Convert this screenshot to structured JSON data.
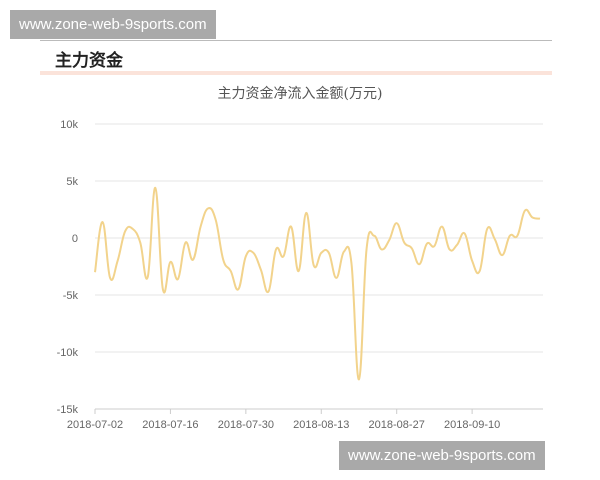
{
  "watermark_top": "www.zone-web-9sports.com",
  "watermark_bottom": "www.zone-web-9sports.com",
  "section_title": "主力资金",
  "colors": {
    "line": "#f2d38c",
    "grid": "#e6e6e6",
    "band": "#fbe3da"
  },
  "chart_data": {
    "type": "line",
    "title": "主力资金净流入金额(万元)",
    "xlabel": "",
    "ylabel": "",
    "ylim": [
      -15000,
      10000
    ],
    "yticks": [
      10000,
      5000,
      0,
      -5000,
      -10000,
      -15000
    ],
    "ytick_labels": [
      "10k",
      "5k",
      "0",
      "-5k",
      "-10k",
      "-15k"
    ],
    "xtick_labels": [
      "2018-07-02",
      "2018-07-16",
      "2018-07-30",
      "2018-08-13",
      "2018-08-27",
      "2018-09-10"
    ],
    "grid": true,
    "smooth": true,
    "x": [
      "2018-07-02",
      "2018-07-03",
      "2018-07-04",
      "2018-07-05",
      "2018-07-06",
      "2018-07-09",
      "2018-07-10",
      "2018-07-11",
      "2018-07-12",
      "2018-07-13",
      "2018-07-16",
      "2018-07-17",
      "2018-07-18",
      "2018-07-19",
      "2018-07-20",
      "2018-07-23",
      "2018-07-24",
      "2018-07-25",
      "2018-07-26",
      "2018-07-27",
      "2018-07-30",
      "2018-07-31",
      "2018-08-01",
      "2018-08-02",
      "2018-08-03",
      "2018-08-06",
      "2018-08-07",
      "2018-08-08",
      "2018-08-09",
      "2018-08-10",
      "2018-08-13",
      "2018-08-14",
      "2018-08-15",
      "2018-08-16",
      "2018-08-17",
      "2018-08-20",
      "2018-08-21",
      "2018-08-22",
      "2018-08-23",
      "2018-08-24",
      "2018-08-27",
      "2018-08-28",
      "2018-08-29",
      "2018-08-30",
      "2018-08-31",
      "2018-09-03",
      "2018-09-04",
      "2018-09-05",
      "2018-09-06",
      "2018-09-07",
      "2018-09-10",
      "2018-09-11",
      "2018-09-12",
      "2018-09-13",
      "2018-09-14",
      "2018-09-17",
      "2018-09-18",
      "2018-09-19",
      "2018-09-20",
      "2018-09-21"
    ],
    "values": [
      -3000,
      1400,
      -3500,
      -2000,
      600,
      800,
      -400,
      -3400,
      4400,
      -4500,
      -2100,
      -3600,
      -400,
      -1900,
      1000,
      2600,
      1600,
      -1900,
      -2900,
      -4500,
      -1600,
      -1300,
      -2800,
      -4700,
      -1000,
      -1600,
      1000,
      -2900,
      2200,
      -2400,
      -1300,
      -1300,
      -3500,
      -1200,
      -2200,
      -12400,
      -1000,
      200,
      -1000,
      -200,
      1300,
      -400,
      -900,
      -2300,
      -500,
      -700,
      1000,
      -1000,
      -600,
      400,
      -2000,
      -2900,
      800,
      -100,
      -1500,
      200,
      200,
      2400,
      1800,
      1700
    ]
  }
}
